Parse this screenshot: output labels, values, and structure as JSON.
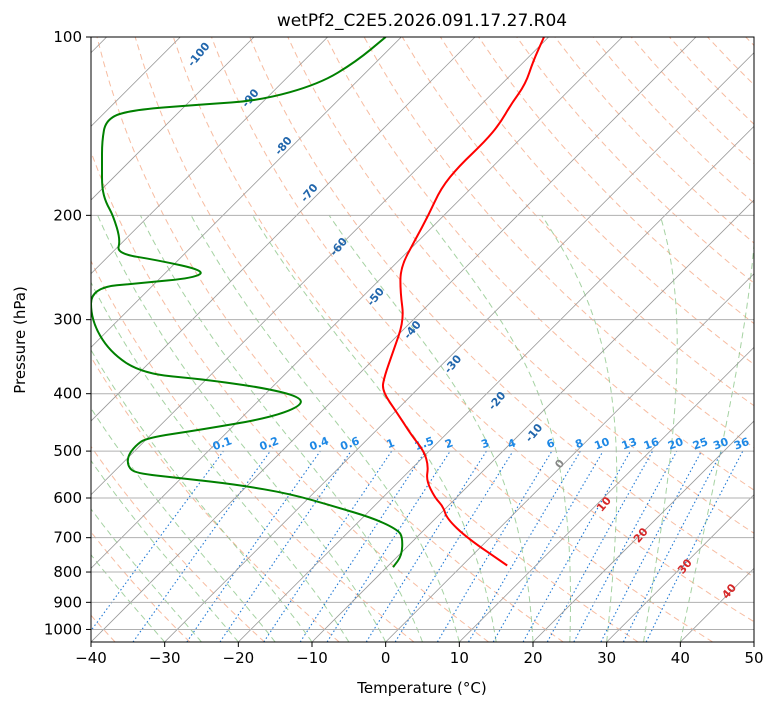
{
  "chart_data": {
    "type": "skew-t",
    "title": "wetPf2_C2E5.2026.091.17.27.R04",
    "xlabel": "Temperature (°C)",
    "ylabel": "Pressure (hPa)",
    "xlim": [
      -40,
      50
    ],
    "ylim": [
      1050,
      100
    ],
    "y_scale": "log",
    "grid": true,
    "x_ticks": [
      -40,
      -30,
      -20,
      -10,
      0,
      10,
      20,
      30,
      40,
      50
    ],
    "y_ticks": [
      100,
      200,
      300,
      400,
      500,
      600,
      700,
      800,
      900,
      1000
    ],
    "colors": {
      "temperature": "#ff0000",
      "dewpoint": "#008000",
      "isotherm": "#999999",
      "dry_adiabat": "#f4a582",
      "moist_adiabat": "#7fbf7b",
      "mixing_ratio": "#1f78d4",
      "potential_temp_label": "#2166ac",
      "moist_label": "#d62728"
    },
    "series": [
      {
        "name": "",
        "role": "temperature",
        "points": [
          {
            "p": 780,
            "t": 16.5
          },
          {
            "p": 700,
            "t": 11.0
          },
          {
            "p": 650,
            "t": 8.3
          },
          {
            "p": 620,
            "t": 7.8
          },
          {
            "p": 600,
            "t": 6.7
          },
          {
            "p": 560,
            "t": 5.5
          },
          {
            "p": 530,
            "t": 5.8
          },
          {
            "p": 500,
            "t": 5.2
          },
          {
            "p": 470,
            "t": 3.5
          },
          {
            "p": 430,
            "t": 1.5
          },
          {
            "p": 395,
            "t": -0.5
          },
          {
            "p": 375,
            "t": -0.2
          },
          {
            "p": 340,
            "t": 1.0
          },
          {
            "p": 300,
            "t": 2.5
          },
          {
            "p": 270,
            "t": 2.0
          },
          {
            "p": 245,
            "t": 2.0
          },
          {
            "p": 220,
            "t": 4.0
          },
          {
            "p": 200,
            "t": 5.8
          },
          {
            "p": 180,
            "t": 7.5
          },
          {
            "p": 165,
            "t": 10.0
          },
          {
            "p": 150,
            "t": 13.5
          },
          {
            "p": 140,
            "t": 15.5
          },
          {
            "p": 130,
            "t": 17.0
          },
          {
            "p": 120,
            "t": 19.0
          },
          {
            "p": 110,
            "t": 20.0
          },
          {
            "p": 100,
            "t": 21.5
          }
        ]
      },
      {
        "name": "",
        "role": "dewpoint",
        "points": [
          {
            "p": 785,
            "t": 1.0
          },
          {
            "p": 750,
            "t": 2.2
          },
          {
            "p": 700,
            "t": 2.3
          },
          {
            "p": 680,
            "t": 1.7
          },
          {
            "p": 650,
            "t": -1.5
          },
          {
            "p": 620,
            "t": -7.0
          },
          {
            "p": 590,
            "t": -13.0
          },
          {
            "p": 570,
            "t": -20.0
          },
          {
            "p": 555,
            "t": -28.0
          },
          {
            "p": 545,
            "t": -34.0
          },
          {
            "p": 530,
            "t": -35.0
          },
          {
            "p": 510,
            "t": -35.0
          },
          {
            "p": 490,
            "t": -34.0
          },
          {
            "p": 475,
            "t": -32.5
          },
          {
            "p": 460,
            "t": -25.0
          },
          {
            "p": 440,
            "t": -16.0
          },
          {
            "p": 420,
            "t": -11.5
          },
          {
            "p": 405,
            "t": -11.5
          },
          {
            "p": 390,
            "t": -17.0
          },
          {
            "p": 378,
            "t": -25.0
          },
          {
            "p": 370,
            "t": -33.0
          },
          {
            "p": 340,
            "t": -37.5
          },
          {
            "p": 300,
            "t": -40.0
          },
          {
            "p": 265,
            "t": -40.0
          },
          {
            "p": 260,
            "t": -33.0
          },
          {
            "p": 255,
            "t": -26.0
          },
          {
            "p": 248,
            "t": -24.5
          },
          {
            "p": 238,
            "t": -31.0
          },
          {
            "p": 232,
            "t": -36.5
          },
          {
            "p": 220,
            "t": -36.0
          },
          {
            "p": 200,
            "t": -37.0
          },
          {
            "p": 190,
            "t": -38.0
          },
          {
            "p": 180,
            "t": -38.5
          },
          {
            "p": 165,
            "t": -38.5
          },
          {
            "p": 150,
            "t": -38.5
          },
          {
            "p": 138,
            "t": -38.0
          },
          {
            "p": 133,
            "t": -35.0
          },
          {
            "p": 130,
            "t": -25.0
          },
          {
            "p": 128,
            "t": -17.0
          },
          {
            "p": 120,
            "t": -9.0
          },
          {
            "p": 110,
            "t": -4.0
          },
          {
            "p": 100,
            "t": 0.0
          }
        ]
      }
    ],
    "potential_temp_labels": [
      "-100",
      "-90",
      "-80",
      "-70",
      "-60",
      "-50",
      "-40",
      "-30",
      "-20",
      "-10"
    ],
    "moist_adiabat_labels": [
      "0",
      "10",
      "20",
      "30",
      "40"
    ],
    "mixing_ratio_labels": [
      "0.1",
      "0.2",
      "0.4",
      "0.6",
      "1",
      "1.5",
      "2",
      "3",
      "4",
      "6",
      "8",
      "10",
      "13",
      "16",
      "20",
      "25",
      "30",
      "36"
    ]
  }
}
